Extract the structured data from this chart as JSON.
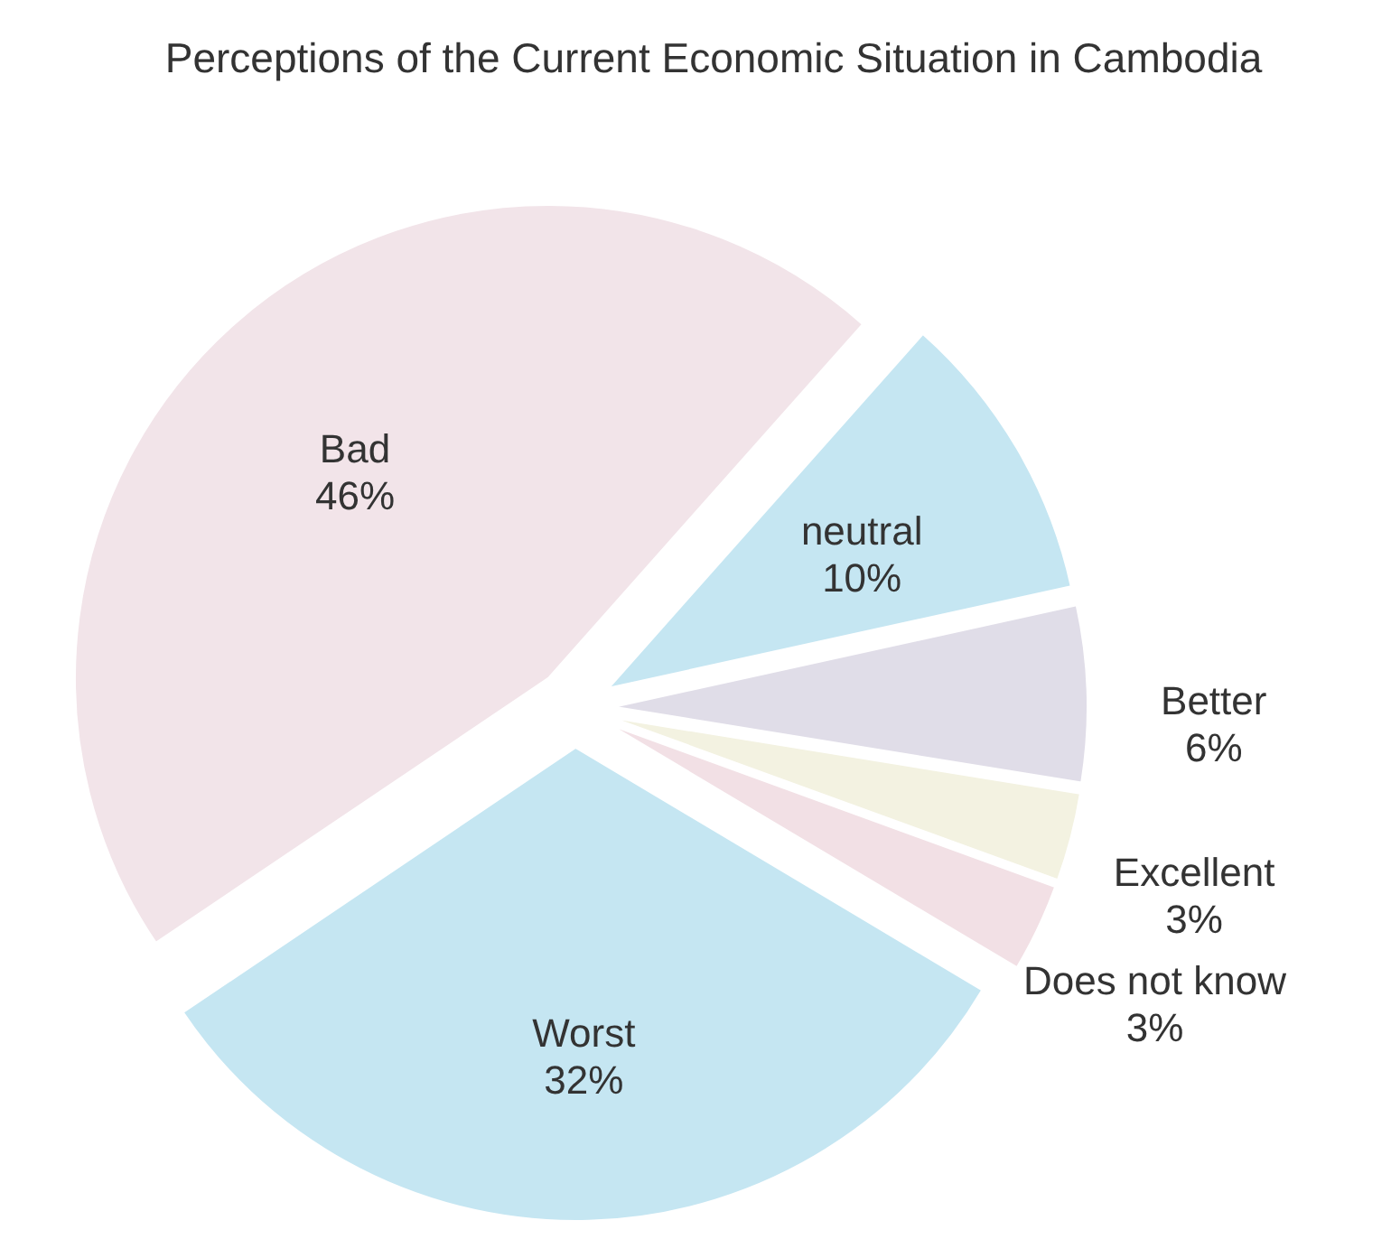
{
  "chart_data": {
    "type": "pie",
    "title": "Perceptions of the Current Economic Situation in Cambodia",
    "categories": [
      "neutral",
      "Better",
      "Excellent",
      "Does not know",
      "Worst",
      "Bad"
    ],
    "values": [
      10,
      6,
      3,
      3,
      32,
      46
    ],
    "value_labels": [
      "10%",
      "6%",
      "3%",
      "3%",
      "32%",
      "46%"
    ],
    "colors": [
      "#c5e6f2",
      "#e0dde8",
      "#f3f2e1",
      "#f2e0e5",
      "#c5e6f2",
      "#f2e4e9"
    ]
  }
}
